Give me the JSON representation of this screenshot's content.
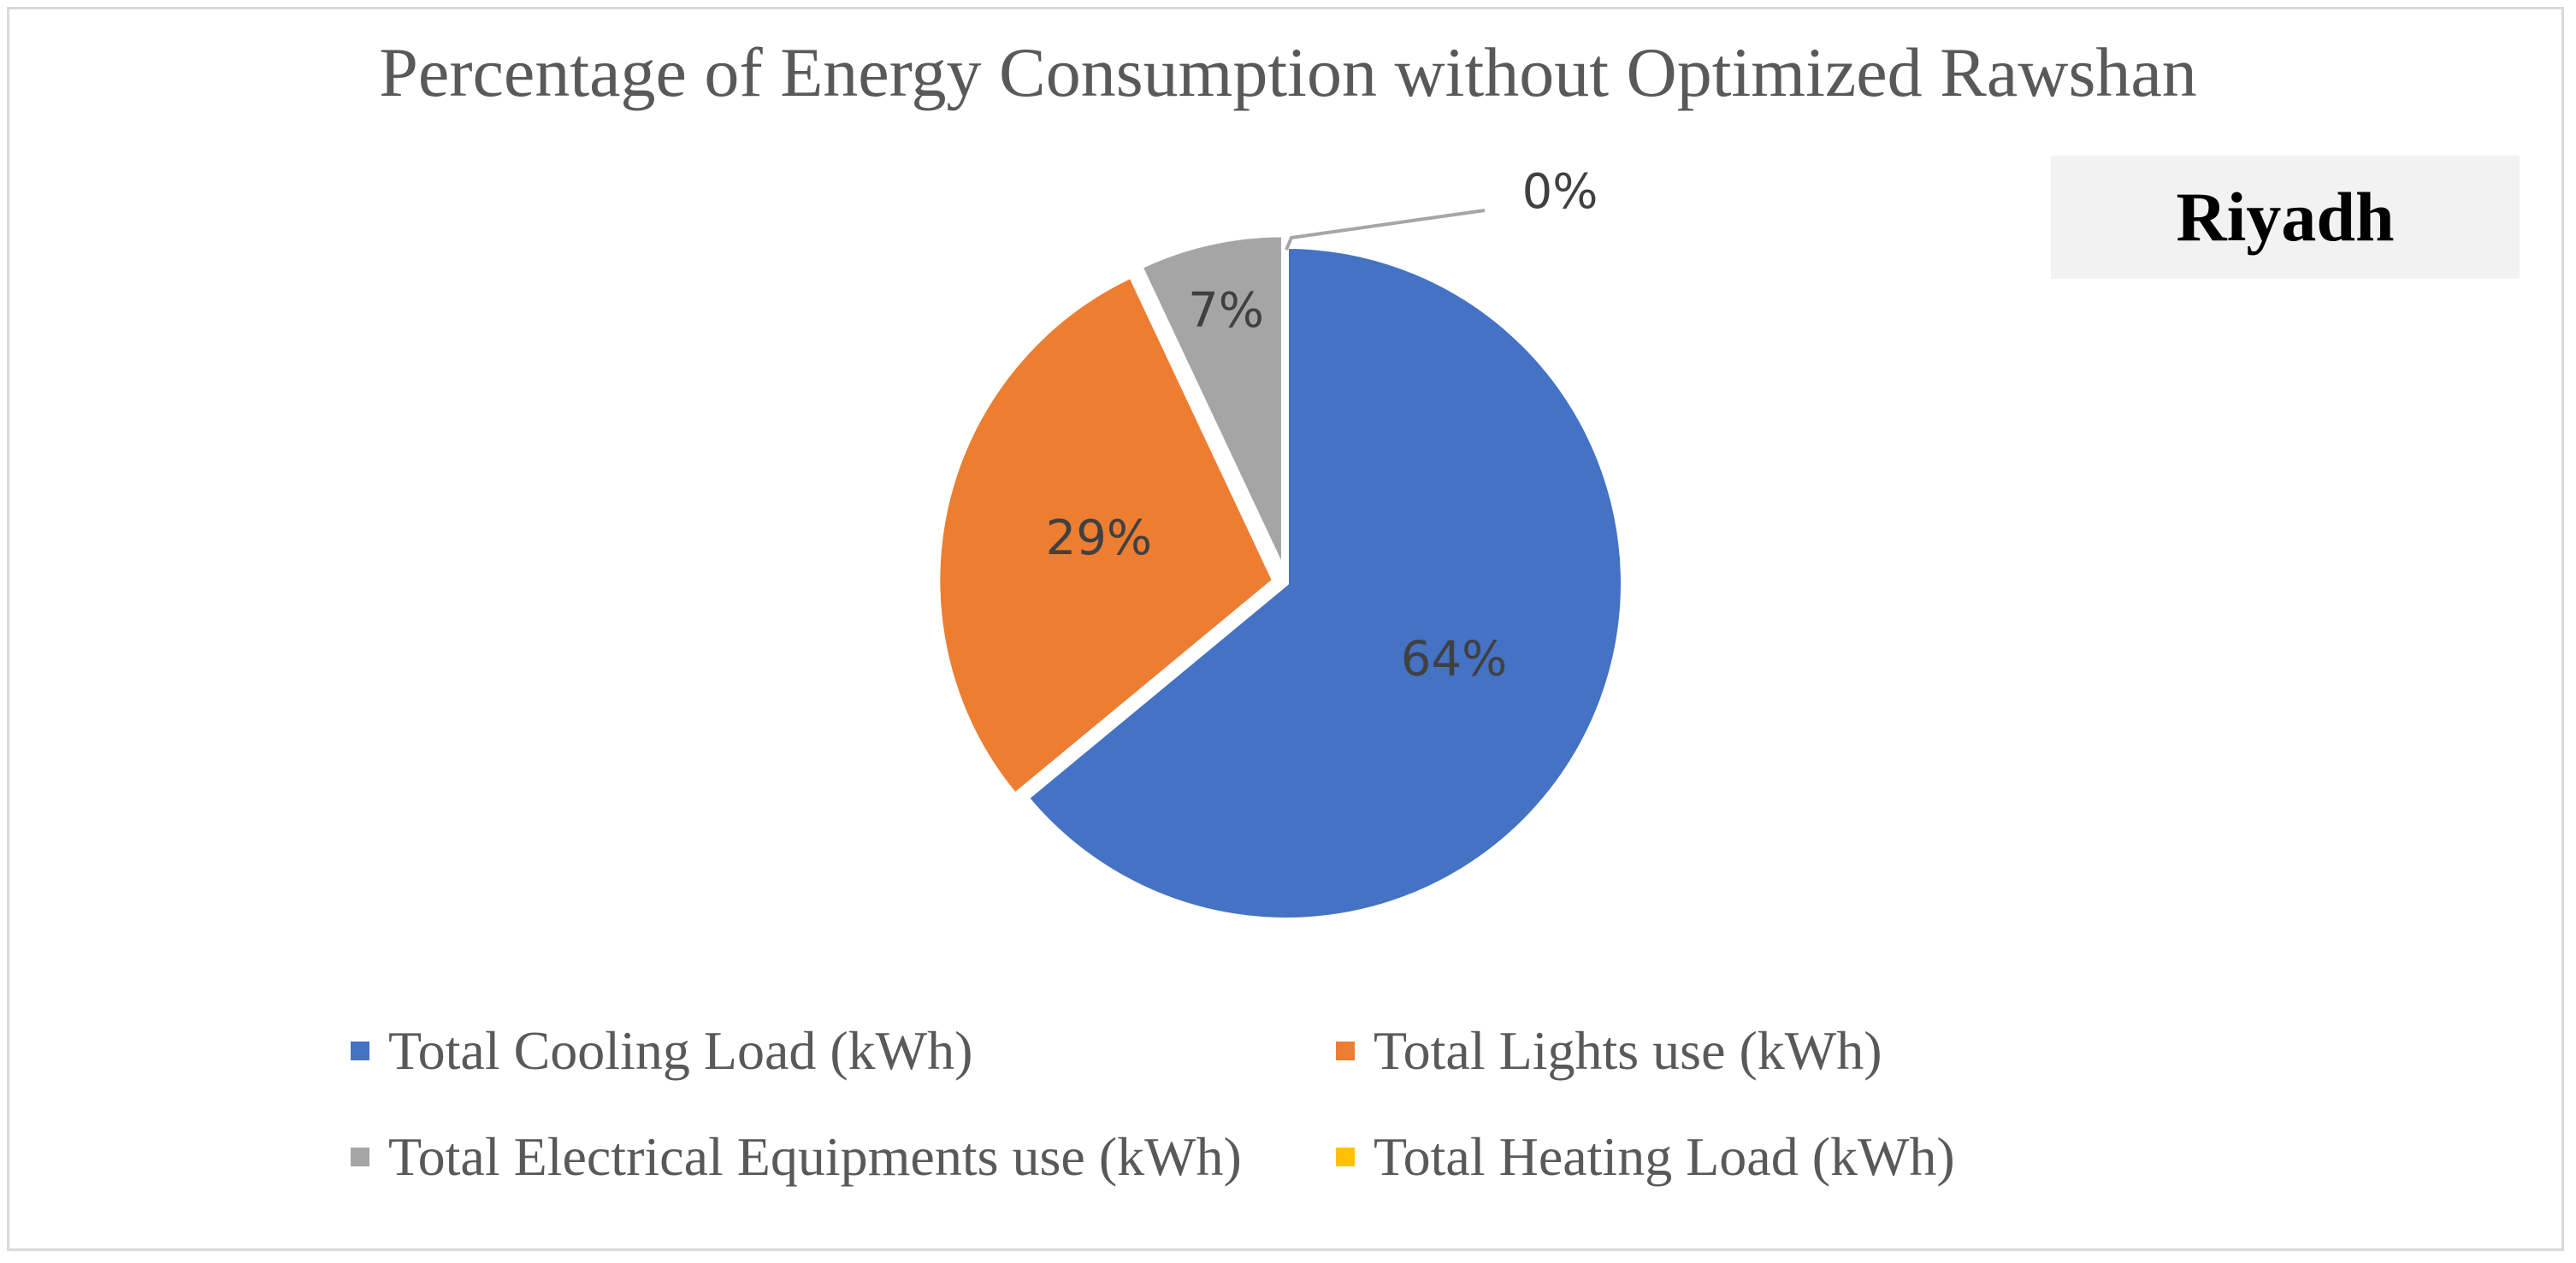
{
  "chart_data": {
    "type": "pie",
    "title": "Percentage of Energy Consumption without Optimized Rawshan",
    "annotation": "Riyadh",
    "categories": [
      "Total Cooling Load (kWh)",
      "Total Lights use (kWh)",
      "Total Electrical Equipments use (kWh)",
      "Total Heating Load (kWh)"
    ],
    "values": [
      64,
      29,
      7,
      0
    ],
    "labels": [
      "64%",
      "29%",
      "7%",
      "0%"
    ],
    "colors": [
      "#4472c4",
      "#ed7d31",
      "#a5a5a5",
      "#ffc000"
    ],
    "legend_position": "bottom"
  }
}
